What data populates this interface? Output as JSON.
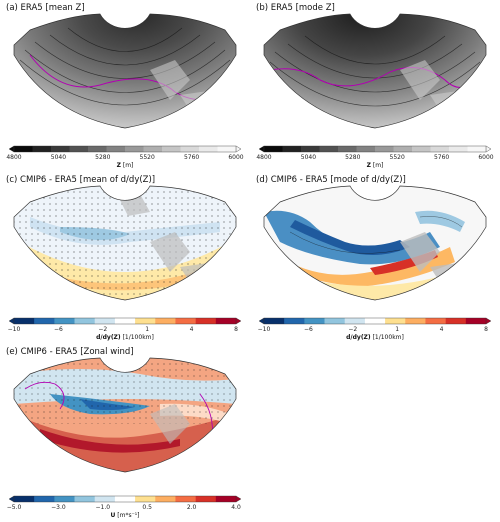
{
  "panels": [
    {
      "id": "a",
      "title": "(a) ERA5 [mean Z]",
      "colorbar": {
        "label_bold": "Z",
        "label_unit": " [m]",
        "ticks": [
          "4800",
          "5040",
          "5280",
          "5520",
          "5760",
          "6000"
        ],
        "colors": [
          "#0a0a0a",
          "#222222",
          "#3a3a3a",
          "#525252",
          "#6a6a6a",
          "#828282",
          "#999999",
          "#afafaf",
          "#c5c5c5",
          "#d9d9d9",
          "#eaeaea",
          "#f7f7f7"
        ],
        "extend": "both"
      }
    },
    {
      "id": "b",
      "title": "(b) ERA5 [mode Z]",
      "colorbar": {
        "label_bold": "Z",
        "label_unit": " [m]",
        "ticks": [
          "4800",
          "5040",
          "5280",
          "5520",
          "5760",
          "6000"
        ],
        "colors": [
          "#0a0a0a",
          "#222222",
          "#3a3a3a",
          "#525252",
          "#6a6a6a",
          "#828282",
          "#999999",
          "#afafaf",
          "#c5c5c5",
          "#d9d9d9",
          "#eaeaea",
          "#f7f7f7"
        ],
        "extend": "both"
      }
    },
    {
      "id": "c",
      "title": "(c) CMIP6 - ERA5 [mean of d/dy(Z)]",
      "colorbar": {
        "label_bold": "d/dy(Z)",
        "label_unit": " [1/100km]",
        "ticks": [
          "−10",
          "−6",
          "−2",
          "1",
          "4",
          "8"
        ],
        "colors": [
          "#08306b",
          "#2166ac",
          "#4393c3",
          "#92c5de",
          "#d1e5f0",
          "#ffffff",
          "#fee090",
          "#fdae61",
          "#f46d43",
          "#d73027",
          "#a50026"
        ],
        "extend": "both"
      }
    },
    {
      "id": "d",
      "title": "(d) CMIP6 - ERA5 [mode of d/dy(Z)]",
      "colorbar": {
        "label_bold": "d/dy(Z)",
        "label_unit": " [1/100km]",
        "ticks": [
          "−10",
          "−6",
          "−2",
          "1",
          "4",
          "8"
        ],
        "colors": [
          "#08306b",
          "#2166ac",
          "#4393c3",
          "#92c5de",
          "#d1e5f0",
          "#ffffff",
          "#fee090",
          "#fdae61",
          "#f46d43",
          "#d73027",
          "#a50026"
        ],
        "extend": "both"
      }
    },
    {
      "id": "e",
      "title": "(e) CMIP6 - ERA5 [Zonal wind]",
      "colorbar": {
        "label_bold": "U",
        "label_unit": " [m*s⁻¹]",
        "ticks": [
          "−5.0",
          "−3.0",
          "−1.0",
          "0.5",
          "2.0",
          "4.0"
        ],
        "colors": [
          "#08306b",
          "#2166ac",
          "#4393c3",
          "#92c5de",
          "#d1e5f0",
          "#ffffff",
          "#fee090",
          "#fdae61",
          "#f46d43",
          "#d73027",
          "#a50026"
        ],
        "extend": "both"
      }
    }
  ],
  "chart_data": [
    {
      "type": "heatmap",
      "panel": "a",
      "title": "(a) ERA5 [mean Z]",
      "colorbar_label": "Z [m]",
      "colorbar_ticks": [
        4800,
        5040,
        5280,
        5520,
        5760,
        6000
      ]
    },
    {
      "type": "heatmap",
      "panel": "b",
      "title": "(b) ERA5 [mode Z]",
      "colorbar_label": "Z [m]",
      "colorbar_ticks": [
        4800,
        5040,
        5280,
        5520,
        5760,
        6000
      ]
    },
    {
      "type": "heatmap",
      "panel": "c",
      "title": "(c) CMIP6 - ERA5 [mean of d/dy(Z)]",
      "colorbar_label": "d/dy(Z) [1/100km]",
      "colorbar_ticks": [
        -10,
        -6,
        -2,
        1,
        4,
        8
      ]
    },
    {
      "type": "heatmap",
      "panel": "d",
      "title": "(d) CMIP6 - ERA5 [mode of d/dy(Z)]",
      "colorbar_label": "d/dy(Z) [1/100km]",
      "colorbar_ticks": [
        -10,
        -6,
        -2,
        1,
        4,
        8
      ]
    },
    {
      "type": "heatmap",
      "panel": "e",
      "title": "(e) CMIP6 - ERA5 [Zonal wind]",
      "colorbar_label": "U [m*s⁻¹]",
      "colorbar_ticks": [
        -5.0,
        -3.0,
        -1.0,
        0.5,
        2.0,
        4.0
      ]
    }
  ]
}
